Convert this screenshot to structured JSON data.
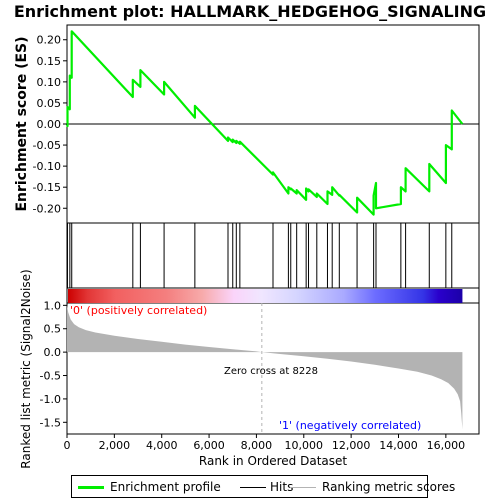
{
  "chart_data": {
    "type": "line",
    "title": "Enrichment plot: HALLMARK_HEDGEHOG_SIGNALING",
    "xlabel": "Rank in Ordered Dataset",
    "es_ylabel": "Enrichment score (ES)",
    "metric_ylabel": "Ranked list metric (Signal2Noise)",
    "xlim": [
      0,
      17400
    ],
    "es_ylim": [
      -0.235,
      0.235
    ],
    "metric_ylim": [
      -1.75,
      1.05
    ],
    "x_ticks": [
      0,
      2000,
      4000,
      6000,
      8000,
      10000,
      12000,
      14000,
      16000
    ],
    "x_tick_labels": [
      "0",
      "2,000",
      "4,000",
      "6,000",
      "8,000",
      "10,000",
      "12,000",
      "14,000",
      "16,000"
    ],
    "es_ticks": [
      0.2,
      0.15,
      0.1,
      0.05,
      0.0,
      -0.05,
      -0.1,
      -0.15,
      -0.2
    ],
    "es_tick_labels": [
      "0.20",
      "0.15",
      "0.10",
      "0.05",
      "0.00",
      "-0.05",
      "-0.10",
      "-0.15",
      "-0.20"
    ],
    "metric_ticks": [
      1.0,
      0.5,
      0.0,
      -0.5,
      -1.0,
      -1.5
    ],
    "metric_tick_labels": [
      "1.0",
      "0.5",
      "0.0",
      "-0.5",
      "-1.0",
      "-1.5"
    ],
    "n_genes": 16700,
    "zero_cross": 8228,
    "zero_cross_label": "Zero cross at 8228",
    "pos_label": "'0' (positively correlated)",
    "neg_label": "'1' (negatively correlated)",
    "hits": [
      20,
      120,
      200,
      2780,
      3100,
      4100,
      5400,
      6800,
      7000,
      7150,
      7300,
      8700,
      9350,
      9450,
      9700,
      10100,
      10200,
      10550,
      11000,
      11200,
      11500,
      12250,
      12950,
      13050,
      14100,
      14300,
      15300,
      16000,
      16250
    ],
    "es_profile": {
      "x": [
        0,
        20,
        20,
        120,
        120,
        200,
        200,
        2780,
        2780,
        3100,
        3100,
        4100,
        4100,
        5400,
        5400,
        6800,
        6800,
        7000,
        7000,
        7150,
        7150,
        7300,
        7300,
        8700,
        8700,
        9350,
        9350,
        9450,
        9450,
        9700,
        9700,
        10100,
        10100,
        10200,
        10200,
        10550,
        10550,
        11000,
        11000,
        11200,
        11200,
        11500,
        11500,
        12250,
        12250,
        12950,
        12950,
        13050,
        13050,
        14100,
        14100,
        14300,
        14300,
        15300,
        15300,
        16000,
        16000,
        16250,
        16250,
        16700
      ],
      "y": [
        0.0,
        -0.005,
        0.04,
        0.035,
        0.115,
        0.11,
        0.22,
        0.064,
        0.105,
        0.088,
        0.128,
        0.07,
        0.1,
        0.015,
        0.043,
        -0.04,
        -0.032,
        -0.043,
        -0.037,
        -0.045,
        -0.04,
        -0.047,
        -0.042,
        -0.12,
        -0.115,
        -0.165,
        -0.15,
        -0.155,
        -0.153,
        -0.165,
        -0.157,
        -0.18,
        -0.153,
        -0.16,
        -0.155,
        -0.173,
        -0.165,
        -0.19,
        -0.16,
        -0.168,
        -0.15,
        -0.17,
        -0.168,
        -0.21,
        -0.175,
        -0.215,
        -0.17,
        -0.14,
        -0.2,
        -0.19,
        -0.15,
        -0.16,
        -0.105,
        -0.16,
        -0.095,
        -0.14,
        -0.05,
        -0.06,
        0.032,
        0.0
      ]
    },
    "metric_profile": {
      "x": [
        0,
        50,
        150,
        300,
        500,
        800,
        1200,
        2000,
        3000,
        4000,
        5000,
        6000,
        7000,
        8000,
        8228,
        9000,
        10000,
        11000,
        12000,
        13000,
        14000,
        14800,
        15400,
        15800,
        16100,
        16350,
        16500,
        16600,
        16650,
        16700
      ],
      "y": [
        1.0,
        0.85,
        0.7,
        0.6,
        0.53,
        0.47,
        0.42,
        0.35,
        0.28,
        0.22,
        0.16,
        0.11,
        0.06,
        0.015,
        0.0,
        -0.04,
        -0.09,
        -0.14,
        -0.2,
        -0.27,
        -0.35,
        -0.42,
        -0.5,
        -0.58,
        -0.66,
        -0.78,
        -0.9,
        -1.05,
        -1.3,
        -1.65
      ]
    },
    "heatmap_stops": [
      {
        "at": 0.0,
        "color": "#cc0000"
      },
      {
        "at": 0.05,
        "color": "#e23636"
      },
      {
        "at": 0.12,
        "color": "#f26060"
      },
      {
        "at": 0.25,
        "color": "#f47f7f"
      },
      {
        "at": 0.34,
        "color": "#f7aaaa"
      },
      {
        "at": 0.42,
        "color": "#fad4fa"
      },
      {
        "at": 0.49,
        "color": "#f0e6ff"
      },
      {
        "at": 0.58,
        "color": "#d5d5ff"
      },
      {
        "at": 0.7,
        "color": "#a9a9ff"
      },
      {
        "at": 0.78,
        "color": "#6c6cff"
      },
      {
        "at": 0.9,
        "color": "#3434e6"
      },
      {
        "at": 0.94,
        "color": "#2a00cc"
      },
      {
        "at": 1.0,
        "color": "#1b00a8"
      }
    ],
    "colors": {
      "es_line": "#00ee00",
      "hit_line": "#000000",
      "metric_fill": "#b3b3b3",
      "zero_line": "#b3b3b3",
      "pos_label": "#ff0000",
      "neg_label": "#0000ff"
    },
    "legend": {
      "es": "Enrichment profile",
      "hits": "Hits",
      "metric": "Ranking metric scores"
    }
  }
}
